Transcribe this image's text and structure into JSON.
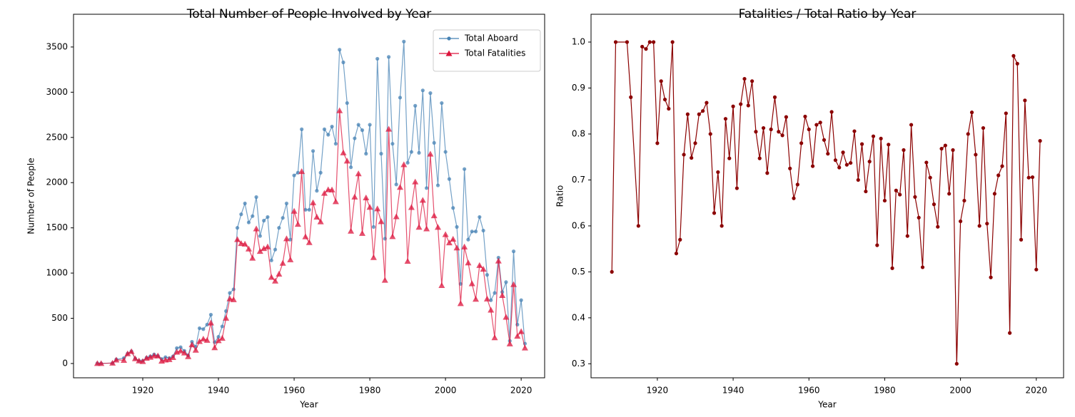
{
  "chart_data": [
    {
      "type": "line",
      "title": "Total Number of People Involved by Year",
      "xlabel": "Year",
      "ylabel": "Number of People",
      "x": [
        1908,
        1909,
        1912,
        1913,
        1915,
        1916,
        1917,
        1918,
        1919,
        1920,
        1921,
        1922,
        1923,
        1924,
        1925,
        1926,
        1927,
        1928,
        1929,
        1930,
        1931,
        1932,
        1933,
        1934,
        1935,
        1936,
        1937,
        1938,
        1939,
        1940,
        1941,
        1942,
        1943,
        1944,
        1945,
        1946,
        1947,
        1948,
        1949,
        1950,
        1951,
        1952,
        1953,
        1954,
        1955,
        1956,
        1957,
        1958,
        1959,
        1960,
        1961,
        1962,
        1963,
        1964,
        1965,
        1966,
        1967,
        1968,
        1969,
        1970,
        1971,
        1972,
        1973,
        1974,
        1975,
        1976,
        1977,
        1978,
        1979,
        1980,
        1981,
        1982,
        1983,
        1984,
        1985,
        1986,
        1987,
        1988,
        1989,
        1990,
        1991,
        1992,
        1993,
        1994,
        1995,
        1996,
        1997,
        1998,
        1999,
        2000,
        2001,
        2002,
        2003,
        2004,
        2005,
        2006,
        2007,
        2008,
        2009,
        2010,
        2011,
        2012,
        2013,
        2014,
        2015,
        2016,
        2017,
        2018,
        2019,
        2020,
        2021
      ],
      "series": [
        {
          "name": "Total Aboard",
          "color": "#4682b4",
          "marker": "circle",
          "values": [
            2,
            1,
            5,
            45,
            60,
            110,
            135,
            55,
            30,
            30,
            65,
            80,
            100,
            85,
            50,
            70,
            60,
            80,
            170,
            180,
            140,
            90,
            240,
            185,
            390,
            380,
            430,
            540,
            235,
            295,
            410,
            580,
            780,
            820,
            1500,
            1650,
            1770,
            1560,
            1630,
            1840,
            1410,
            1580,
            1620,
            1140,
            1260,
            1500,
            1610,
            1770,
            1370,
            2080,
            2110,
            2590,
            1700,
            1700,
            2350,
            1910,
            2110,
            2590,
            2530,
            2620,
            2430,
            3470,
            3330,
            2880,
            2170,
            2490,
            2640,
            2580,
            2320,
            2640,
            1510,
            3370,
            2320,
            1380,
            3390,
            2430,
            1980,
            2940,
            3560,
            2220,
            2340,
            2850,
            2330,
            3020,
            1940,
            2990,
            2440,
            1970,
            2880,
            2340,
            2040,
            1720,
            1510,
            880,
            2150,
            1370,
            1460,
            1460,
            1620,
            1470,
            980,
            700,
            780,
            1170,
            790,
            900,
            250,
            1240,
            430,
            700,
            220
          ]
        },
        {
          "name": "Total Fatalities",
          "color": "#dc143c",
          "marker": "triangle",
          "values": [
            1,
            1,
            5,
            40,
            36,
            109,
            133,
            55,
            30,
            23,
            60,
            70,
            86,
            85,
            27,
            40,
            45,
            67,
            127,
            140,
            118,
            77,
            208,
            148,
            245,
            272,
            258,
            450,
            176,
            254,
            280,
            502,
            717,
            707,
            1372,
            1328,
            1322,
            1268,
            1166,
            1490,
            1241,
            1272,
            1291,
            954,
            913,
            990,
            1110,
            1381,
            1148,
            1685,
            1540,
            2124,
            1403,
            1338,
            1779,
            1620,
            1568,
            1883,
            1923,
            1921,
            1791,
            2797,
            2331,
            2240,
            1465,
            1842,
            2099,
            1440,
            1833,
            1729,
            1173,
            1712,
            1570,
            922,
            2593,
            1404,
            1624,
            1949,
            2200,
            1132,
            1727,
            2009,
            1508,
            1806,
            1490,
            2317,
            1635,
            1507,
            864,
            1427,
            1336,
            1376,
            1279,
            664,
            1290,
            1114,
            883,
            712,
            1085,
            1044,
            715,
            592,
            286,
            1135,
            753,
            513,
            218,
            874,
            303,
            354,
            173
          ]
        }
      ],
      "xlim": [
        1901.7,
        2026.2
      ],
      "ylim": [
        -158,
        3862
      ],
      "xticks": [
        1920,
        1940,
        1960,
        1980,
        2000,
        2020
      ],
      "yticks": [
        0,
        500,
        1000,
        1500,
        2000,
        2500,
        3000,
        3500
      ],
      "legend": "upper right"
    },
    {
      "type": "line",
      "title": "Fatalities / Total Ratio by Year",
      "xlabel": "Year",
      "ylabel": "Ratio",
      "x": [
        1908,
        1909,
        1912,
        1913,
        1915,
        1916,
        1917,
        1918,
        1919,
        1920,
        1921,
        1922,
        1923,
        1924,
        1925,
        1926,
        1927,
        1928,
        1929,
        1930,
        1931,
        1932,
        1933,
        1934,
        1935,
        1936,
        1937,
        1938,
        1939,
        1940,
        1941,
        1942,
        1943,
        1944,
        1945,
        1946,
        1947,
        1948,
        1949,
        1950,
        1951,
        1952,
        1953,
        1954,
        1955,
        1956,
        1957,
        1958,
        1959,
        1960,
        1961,
        1962,
        1963,
        1964,
        1965,
        1966,
        1967,
        1968,
        1969,
        1970,
        1971,
        1972,
        1973,
        1974,
        1975,
        1976,
        1977,
        1978,
        1979,
        1980,
        1981,
        1982,
        1983,
        1984,
        1985,
        1986,
        1987,
        1988,
        1989,
        1990,
        1991,
        1992,
        1993,
        1994,
        1995,
        1996,
        1997,
        1998,
        1999,
        2000,
        2001,
        2002,
        2003,
        2004,
        2005,
        2006,
        2007,
        2008,
        2009,
        2010,
        2011,
        2012,
        2013,
        2014,
        2015,
        2016,
        2017,
        2018,
        2019,
        2020,
        2021
      ],
      "series": [
        {
          "color": "#8b0000",
          "marker": "circle",
          "values": [
            0.5,
            1.0,
            1.0,
            0.88,
            0.6,
            0.99,
            0.985,
            1.0,
            1.0,
            0.78,
            0.915,
            0.875,
            0.855,
            1.0,
            0.54,
            0.57,
            0.755,
            0.843,
            0.748,
            0.78,
            0.843,
            0.85,
            0.868,
            0.8,
            0.628,
            0.717,
            0.6,
            0.833,
            0.747,
            0.86,
            0.682,
            0.865,
            0.92,
            0.862,
            0.915,
            0.805,
            0.747,
            0.813,
            0.715,
            0.81,
            0.88,
            0.805,
            0.797,
            0.837,
            0.725,
            0.66,
            0.69,
            0.78,
            0.838,
            0.81,
            0.73,
            0.82,
            0.825,
            0.787,
            0.757,
            0.848,
            0.743,
            0.727,
            0.76,
            0.733,
            0.737,
            0.806,
            0.7,
            0.778,
            0.675,
            0.74,
            0.795,
            0.558,
            0.79,
            0.655,
            0.777,
            0.508,
            0.677,
            0.668,
            0.765,
            0.578,
            0.82,
            0.663,
            0.618,
            0.51,
            0.738,
            0.705,
            0.647,
            0.598,
            0.768,
            0.775,
            0.67,
            0.765,
            0.3,
            0.61,
            0.655,
            0.8,
            0.847,
            0.755,
            0.6,
            0.813,
            0.605,
            0.488,
            0.67,
            0.71,
            0.73,
            0.845,
            0.367,
            0.97,
            0.953,
            0.57,
            0.873,
            0.705,
            0.706,
            0.505,
            0.785
          ]
        }
      ],
      "xlim": [
        1902.5,
        2027.2
      ],
      "ylim": [
        0.2695,
        1.0605
      ],
      "xticks": [
        1920,
        1940,
        1960,
        1980,
        2000,
        2020
      ],
      "yticks": [
        0.3,
        0.4,
        0.5,
        0.6,
        0.7,
        0.8,
        0.9,
        {
          "value": 1,
          "label": "1.0"
        }
      ]
    }
  ]
}
